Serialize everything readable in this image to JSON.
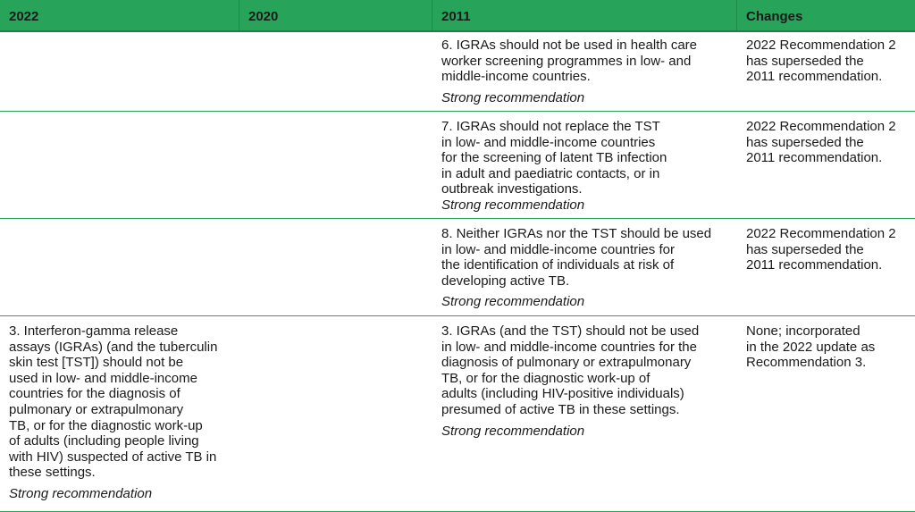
{
  "headers": [
    "2022",
    "2020",
    "2011",
    "Changes"
  ],
  "rows": [
    {
      "c2022": {
        "text": "",
        "strength": ""
      },
      "c2020": {
        "text": "",
        "strength": ""
      },
      "c2011": {
        "text": "6. IGRAs should not be used in health care\nworker screening programmes in low- and\nmiddle-income countries.",
        "strength": "Strong recommendation"
      },
      "changes": "2022 Recommendation 2\nhas superseded the\n2011 recommendation."
    },
    {
      "c2022": {
        "text": "",
        "strength": ""
      },
      "c2020": {
        "text": "",
        "strength": ""
      },
      "c2011": {
        "text": "7. IGRAs should not replace the TST\nin low- and middle-income countries\nfor the screening of latent TB infection\nin adult and paediatric contacts, or in\noutbreak investigations.",
        "strength": "Strong recommendation"
      },
      "changes": "2022 Recommendation 2\nhas superseded the\n2011 recommendation."
    },
    {
      "c2022": {
        "text": "",
        "strength": ""
      },
      "c2020": {
        "text": "",
        "strength": ""
      },
      "c2011": {
        "text": "8. Neither IGRAs nor the TST should be used\nin low- and middle-income countries for\nthe identification of individuals at risk of\ndeveloping active TB.",
        "strength": "Strong recommendation"
      },
      "changes": "2022 Recommendation 2\nhas superseded the\n2011 recommendation."
    },
    {
      "c2022": {
        "text": "3. Interferon-gamma release\nassays (IGRAs) (and the tuberculin\nskin test [TST]) should not be\nused in low- and middle-income\ncountries for the diagnosis of\npulmonary or extrapulmonary\nTB, or for the diagnostic work-up\nof adults (including people living\nwith HIV) suspected of active TB in\nthese settings.",
        "strength": "Strong recommendation"
      },
      "c2020": {
        "text": "",
        "strength": ""
      },
      "c2011": {
        "text": "3. IGRAs (and the TST) should not be used\nin low- and middle-income countries for the\ndiagnosis of pulmonary or extrapulmonary\nTB, or for the diagnostic work-up of\nadults (including HIV-positive individuals)\npresumed of active TB in these settings.",
        "strength": "Strong recommendation"
      },
      "changes": "None; incorporated\nin the 2022 update as\nRecommendation 3."
    }
  ]
}
